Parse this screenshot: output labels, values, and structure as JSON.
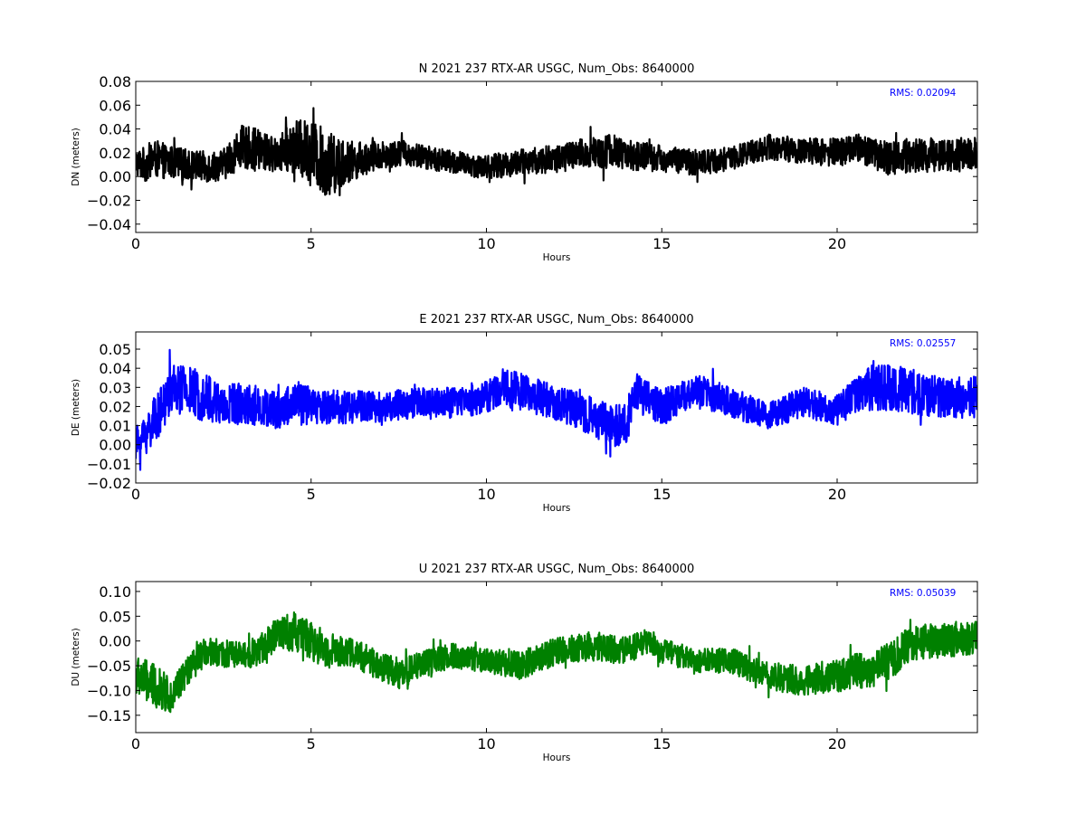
{
  "chart_data": [
    {
      "type": "line",
      "title": "N 2021 237 RTX-AR  USGC, Num_Obs: 8640000",
      "xlabel": "Hours",
      "ylabel": "DN (meters)",
      "xlim": [
        0,
        24
      ],
      "ylim": [
        -0.047,
        0.08
      ],
      "x_ticks": [
        "0",
        "5",
        "10",
        "15",
        "20"
      ],
      "y_ticks": [
        "0.08",
        "0.06",
        "0.04",
        "0.02",
        "0.00",
        "−0.02",
        "−0.04"
      ],
      "rms_text": "RMS:  0.02094",
      "rms_color": "#0000ff",
      "grid": false,
      "series": [
        {
          "color": "#000000",
          "x": [
            0,
            0.25,
            0.5,
            1,
            1.5,
            2,
            2.5,
            3,
            3.5,
            4,
            4.5,
            5,
            5.5,
            6,
            6.5,
            7,
            7.5,
            8,
            9,
            10,
            10.5,
            11,
            12,
            13,
            13.5,
            14,
            15,
            16,
            17,
            17.5,
            18,
            19,
            20,
            20.5,
            21,
            21.5,
            22,
            23,
            24
          ],
          "y": [
            0.012,
            0.01,
            0.015,
            0.012,
            0.01,
            0.008,
            0.01,
            0.025,
            0.022,
            0.018,
            0.025,
            0.02,
            0.01,
            0.012,
            0.015,
            0.018,
            0.02,
            0.018,
            0.012,
            0.008,
            0.01,
            0.012,
            0.015,
            0.02,
            0.022,
            0.018,
            0.015,
            0.012,
            0.015,
            0.02,
            0.025,
            0.022,
            0.02,
            0.025,
            0.02,
            0.015,
            0.018,
            0.018,
            0.02
          ],
          "spread": [
            0.011,
            0.015,
            0.016,
            0.014,
            0.013,
            0.013,
            0.013,
            0.018,
            0.018,
            0.014,
            0.022,
            0.028,
            0.028,
            0.018,
            0.014,
            0.012,
            0.011,
            0.01,
            0.01,
            0.01,
            0.011,
            0.011,
            0.012,
            0.014,
            0.015,
            0.013,
            0.011,
            0.011,
            0.01,
            0.01,
            0.011,
            0.011,
            0.012,
            0.013,
            0.013,
            0.014,
            0.015,
            0.014,
            0.013
          ]
        }
      ]
    },
    {
      "type": "line",
      "title": "E 2021 237 RTX-AR  USGC, Num_Obs: 8640000",
      "xlabel": "Hours",
      "ylabel": "DE (meters)",
      "xlim": [
        0,
        24
      ],
      "ylim": [
        -0.02,
        0.059
      ],
      "x_ticks": [
        "0",
        "5",
        "10",
        "15",
        "20"
      ],
      "y_ticks": [
        "0.05",
        "0.04",
        "0.03",
        "0.02",
        "0.01",
        "0.00",
        "−0.01",
        "−0.02"
      ],
      "rms_text": "RMS:  0.02557",
      "rms_color": "#0000ff",
      "grid": false,
      "series": [
        {
          "color": "#0000ff",
          "x": [
            0,
            0.25,
            0.5,
            0.8,
            1,
            1.5,
            2,
            2.5,
            3,
            4,
            4.5,
            5,
            6,
            7,
            8,
            9,
            10,
            10.5,
            11,
            12,
            13,
            13.5,
            14,
            14.2,
            15,
            16,
            17,
            18,
            19,
            20,
            20.5,
            21,
            21.5,
            22,
            23,
            24
          ],
          "y": [
            0.0,
            0.005,
            0.012,
            0.02,
            0.03,
            0.028,
            0.025,
            0.02,
            0.022,
            0.018,
            0.022,
            0.02,
            0.02,
            0.02,
            0.022,
            0.022,
            0.025,
            0.03,
            0.028,
            0.022,
            0.015,
            0.01,
            0.01,
            0.028,
            0.02,
            0.028,
            0.022,
            0.015,
            0.022,
            0.018,
            0.025,
            0.03,
            0.03,
            0.028,
            0.025,
            0.025
          ],
          "spread": [
            0.009,
            0.011,
            0.012,
            0.012,
            0.013,
            0.013,
            0.013,
            0.012,
            0.011,
            0.01,
            0.012,
            0.01,
            0.009,
            0.008,
            0.008,
            0.008,
            0.009,
            0.01,
            0.01,
            0.009,
            0.01,
            0.011,
            0.011,
            0.011,
            0.009,
            0.009,
            0.008,
            0.007,
            0.008,
            0.008,
            0.01,
            0.012,
            0.012,
            0.012,
            0.011,
            0.011
          ]
        }
      ]
    },
    {
      "type": "line",
      "title": "U 2021 237 RTX-AR  USGC, Num_Obs: 8640000",
      "xlabel": "Hours",
      "ylabel": "DU (meters)",
      "xlim": [
        0,
        24
      ],
      "ylim": [
        -0.185,
        0.12
      ],
      "x_ticks": [
        "0",
        "5",
        "10",
        "15",
        "20"
      ],
      "y_ticks": [
        "0.10",
        "0.05",
        "0.00",
        "−0.05",
        "−0.10",
        "−0.15"
      ],
      "rms_text": "RMS:  0.05039",
      "rms_color": "#0000ff",
      "grid": false,
      "series": [
        {
          "color": "#008000",
          "x": [
            0,
            0.5,
            1,
            1.5,
            2,
            3,
            3.5,
            4,
            4.5,
            5,
            5.5,
            6,
            7,
            7.5,
            8,
            9,
            10,
            11,
            12,
            13,
            14,
            14.5,
            15,
            16,
            17,
            18,
            19,
            20,
            20.5,
            21,
            21.5,
            22,
            22.5,
            23,
            24
          ],
          "y": [
            -0.07,
            -0.09,
            -0.11,
            -0.06,
            -0.02,
            -0.03,
            -0.02,
            0.01,
            0.02,
            0.0,
            -0.02,
            -0.02,
            -0.05,
            -0.07,
            -0.05,
            -0.03,
            -0.04,
            -0.05,
            -0.02,
            -0.01,
            -0.02,
            0.0,
            -0.02,
            -0.04,
            -0.04,
            -0.07,
            -0.08,
            -0.07,
            -0.06,
            -0.06,
            -0.04,
            -0.01,
            0.0,
            0.0,
            0.01
          ],
          "spread": [
            0.04,
            0.045,
            0.035,
            0.03,
            0.028,
            0.028,
            0.03,
            0.035,
            0.04,
            0.04,
            0.035,
            0.03,
            0.03,
            0.03,
            0.028,
            0.025,
            0.025,
            0.028,
            0.028,
            0.03,
            0.028,
            0.025,
            0.025,
            0.025,
            0.025,
            0.028,
            0.03,
            0.035,
            0.035,
            0.035,
            0.04,
            0.035,
            0.035,
            0.035,
            0.035
          ]
        }
      ]
    }
  ]
}
